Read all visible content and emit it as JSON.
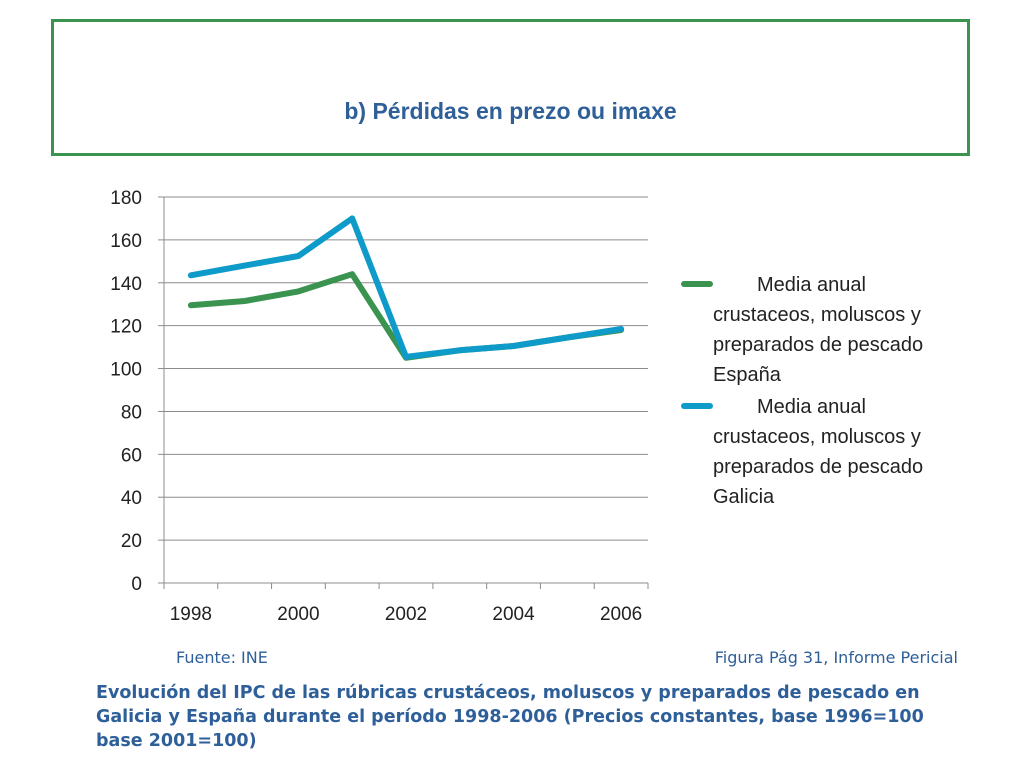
{
  "header": {
    "title": "b) Pérdidas en prezo ou imaxe"
  },
  "chart_data": {
    "type": "line",
    "x": [
      1998.5,
      1999.5,
      2000.5,
      2001.5,
      2002.5,
      2003.5,
      2004.5,
      2005.5,
      2006.5
    ],
    "x_tick_labels": [
      "1998",
      "2000",
      "2002",
      "2004",
      "2006"
    ],
    "x_ticks": [
      1998,
      2000,
      2002,
      2004,
      2006
    ],
    "xlim": [
      1997.5,
      2006.5
    ],
    "ylim": [
      0,
      180
    ],
    "y_ticks": [
      0,
      20,
      40,
      60,
      80,
      100,
      120,
      140,
      160,
      180
    ],
    "grid": true,
    "legend_position": "right",
    "series": [
      {
        "name": "Media anual crustaceos, moluscos y preparados de pescado España",
        "color": "#3a9450",
        "points": [
          [
            1998.0,
            129.5
          ],
          [
            1999.0,
            131.5
          ],
          [
            2000.0,
            136
          ],
          [
            2001.0,
            144
          ],
          [
            2002.0,
            105
          ],
          [
            2003.0,
            108.5
          ],
          [
            2004.0,
            110.5
          ],
          [
            2005.0,
            114.5
          ],
          [
            2006.0,
            118
          ]
        ]
      },
      {
        "name": "Media anual crustaceos, moluscos y preparados de pescado Galicia",
        "color": "#0e9bc9",
        "points": [
          [
            1998.0,
            143.5
          ],
          [
            1999.0,
            148
          ],
          [
            2000.0,
            152.5
          ],
          [
            2001.0,
            170
          ],
          [
            2002.0,
            105.5
          ],
          [
            2003.0,
            108.5
          ],
          [
            2004.0,
            110.5
          ],
          [
            2005.0,
            114.5
          ],
          [
            2006.0,
            118.5
          ]
        ]
      }
    ]
  },
  "footer": {
    "source": "Fuente: INE",
    "figure_ref": "Figura Pág 31, Informe Pericial",
    "caption": "Evolución del IPC  de las rúbricas crustáceos, moluscos y preparados de pescado en Galicia y España durante el período 1998-2006 (Precios constantes, base 1996=100 base 2001=100)"
  }
}
